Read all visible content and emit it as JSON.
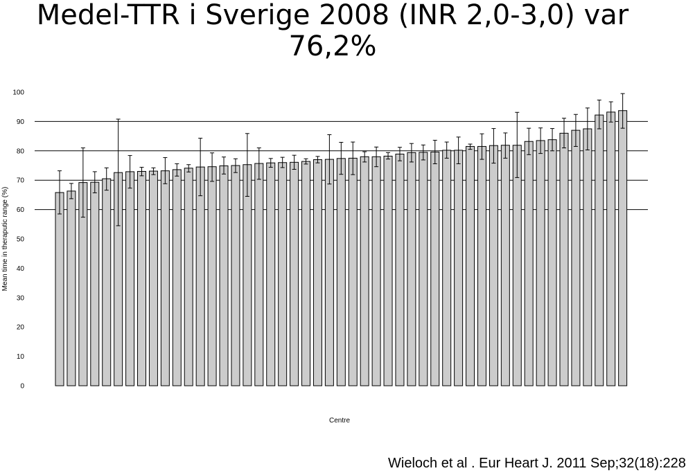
{
  "title_line1": "Medel-TTR i Sverige 2008 (INR 2,0-3,0) var",
  "title_line2": "76,2%",
  "citation": "Wieloch et al . Eur Heart J. 2011 Sep;32(18):228",
  "chart_data": {
    "type": "bar",
    "title": "",
    "xlabel": "Centre",
    "ylabel": "Mean time in theraputic range (%)",
    "ylim": [
      0,
      100
    ],
    "yticks": [
      0,
      10,
      20,
      30,
      40,
      50,
      60,
      70,
      80,
      90,
      100
    ],
    "grid": "horizontal lines at 60, 70, 80, 90",
    "gridlines": [
      60,
      70,
      80,
      90
    ],
    "colors": {
      "bar_fill": "#cccccc",
      "bar_stroke": "#000000",
      "grid": "#000000"
    },
    "values": [
      65.8,
      66.3,
      69.2,
      69.3,
      70.5,
      72.6,
      72.9,
      73.0,
      73.1,
      73.2,
      73.6,
      74.1,
      74.5,
      74.6,
      74.9,
      75.0,
      75.3,
      75.7,
      75.9,
      76.0,
      76.1,
      76.4,
      77.0,
      77.1,
      77.4,
      77.5,
      78.0,
      78.0,
      78.2,
      78.9,
      79.4,
      79.5,
      79.6,
      80.2,
      80.2,
      81.5,
      81.5,
      81.8,
      81.9,
      81.9,
      83.2,
      83.5,
      83.8,
      86.0,
      87.0,
      87.5,
      92.2,
      93.2,
      93.7
    ],
    "error_low": [
      58.5,
      63.7,
      57.4,
      65.7,
      66.6,
      54.5,
      67.3,
      71.5,
      71.9,
      68.8,
      71.4,
      72.8,
      64.7,
      69.6,
      72.1,
      72.6,
      64.5,
      70.3,
      74.4,
      74.3,
      73.7,
      75.5,
      75.9,
      68.7,
      72.0,
      71.9,
      76.2,
      74.6,
      77.2,
      76.6,
      76.2,
      76.9,
      75.6,
      77.5,
      75.6,
      80.5,
      77.1,
      75.8,
      77.5,
      70.9,
      78.7,
      79.1,
      80.0,
      81.0,
      81.5,
      80.3,
      87.5,
      89.8,
      87.7
    ],
    "error_high": [
      73.2,
      68.9,
      81.0,
      72.9,
      74.2,
      90.8,
      78.4,
      74.4,
      74.2,
      77.7,
      75.6,
      75.3,
      84.3,
      79.3,
      77.9,
      77.3,
      85.9,
      81.0,
      77.4,
      77.8,
      78.5,
      77.3,
      78.1,
      85.5,
      82.9,
      83.0,
      79.7,
      81.3,
      79.4,
      81.2,
      82.5,
      82.0,
      83.6,
      83.0,
      84.7,
      82.3,
      85.8,
      87.6,
      86.1,
      93.1,
      87.7,
      87.8,
      87.6,
      91.1,
      92.4,
      94.6,
      97.3,
      96.7,
      99.5
    ]
  }
}
